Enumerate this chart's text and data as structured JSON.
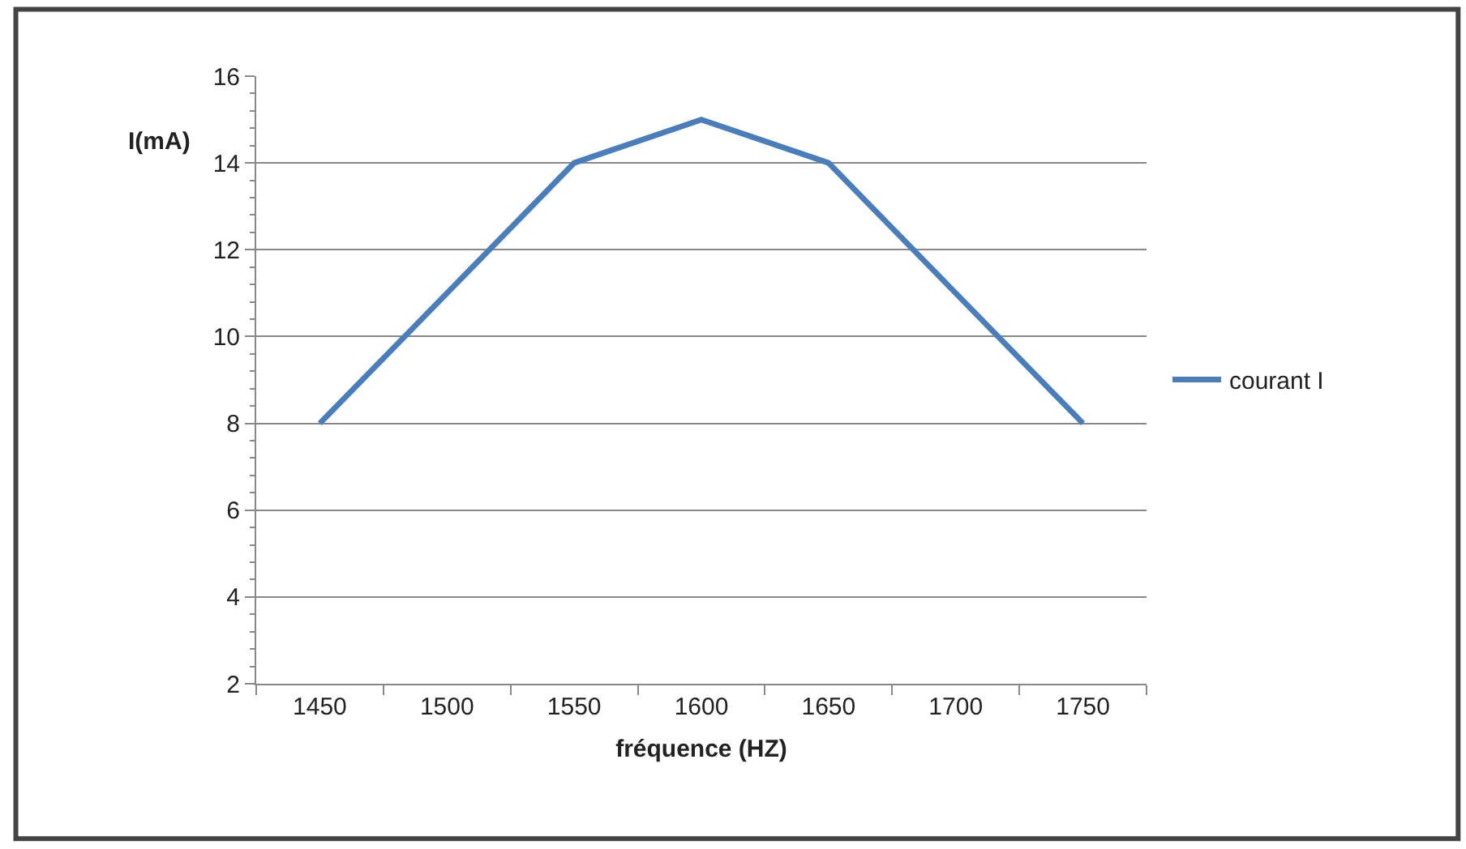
{
  "chart_data": {
    "type": "line",
    "xlabel": "fréquence (HZ)",
    "ylabel": "I(mA)",
    "categories": [
      "1450",
      "1500",
      "1550",
      "1600",
      "1650",
      "1700",
      "1750"
    ],
    "series": [
      {
        "name": "courant I",
        "color": "#4a7ebb",
        "values": [
          8,
          11,
          14,
          15,
          14,
          11,
          8
        ]
      }
    ],
    "ylim": [
      2,
      16
    ],
    "yticks": [
      2,
      4,
      6,
      8,
      10,
      12,
      14,
      16
    ],
    "grid": "y",
    "legend": "right",
    "marker": "none",
    "line_style": "solid"
  }
}
